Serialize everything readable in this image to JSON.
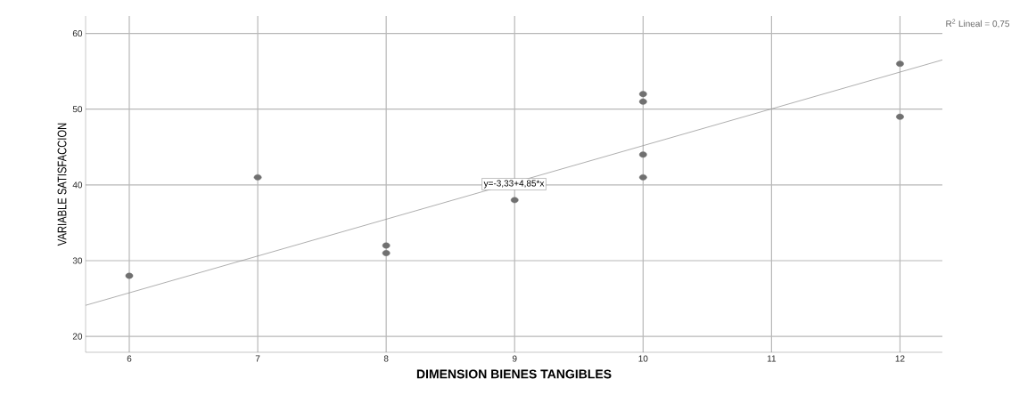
{
  "chart_data": {
    "type": "scatter",
    "xlabel": "DIMENSION BIENES TANGIBLES",
    "ylabel": "VARIABLE SATISFACCION",
    "xlim": [
      5.66,
      12.33
    ],
    "ylim": [
      17.9,
      62.3
    ],
    "xticks": [
      6,
      7,
      8,
      9,
      10,
      11,
      12
    ],
    "yticks": [
      20,
      30,
      40,
      50,
      60
    ],
    "grid": true,
    "series": [
      {
        "color": "#707070",
        "x": [
          6,
          7,
          8,
          8,
          9,
          10,
          10,
          10,
          10,
          12,
          12
        ],
        "values": [
          28,
          41,
          32,
          31,
          38,
          52,
          51,
          44,
          41,
          56,
          49
        ]
      },
      {
        "type": "line",
        "color": "#8c8c8c",
        "line_style": "solid",
        "x": [
          5.66,
          12.33
        ],
        "values": [
          24.1,
          56.5
        ]
      }
    ],
    "annotations": [
      "y=-3,33+4,85*x",
      "R$^{2}$ Lineal = 0,75"
    ]
  }
}
